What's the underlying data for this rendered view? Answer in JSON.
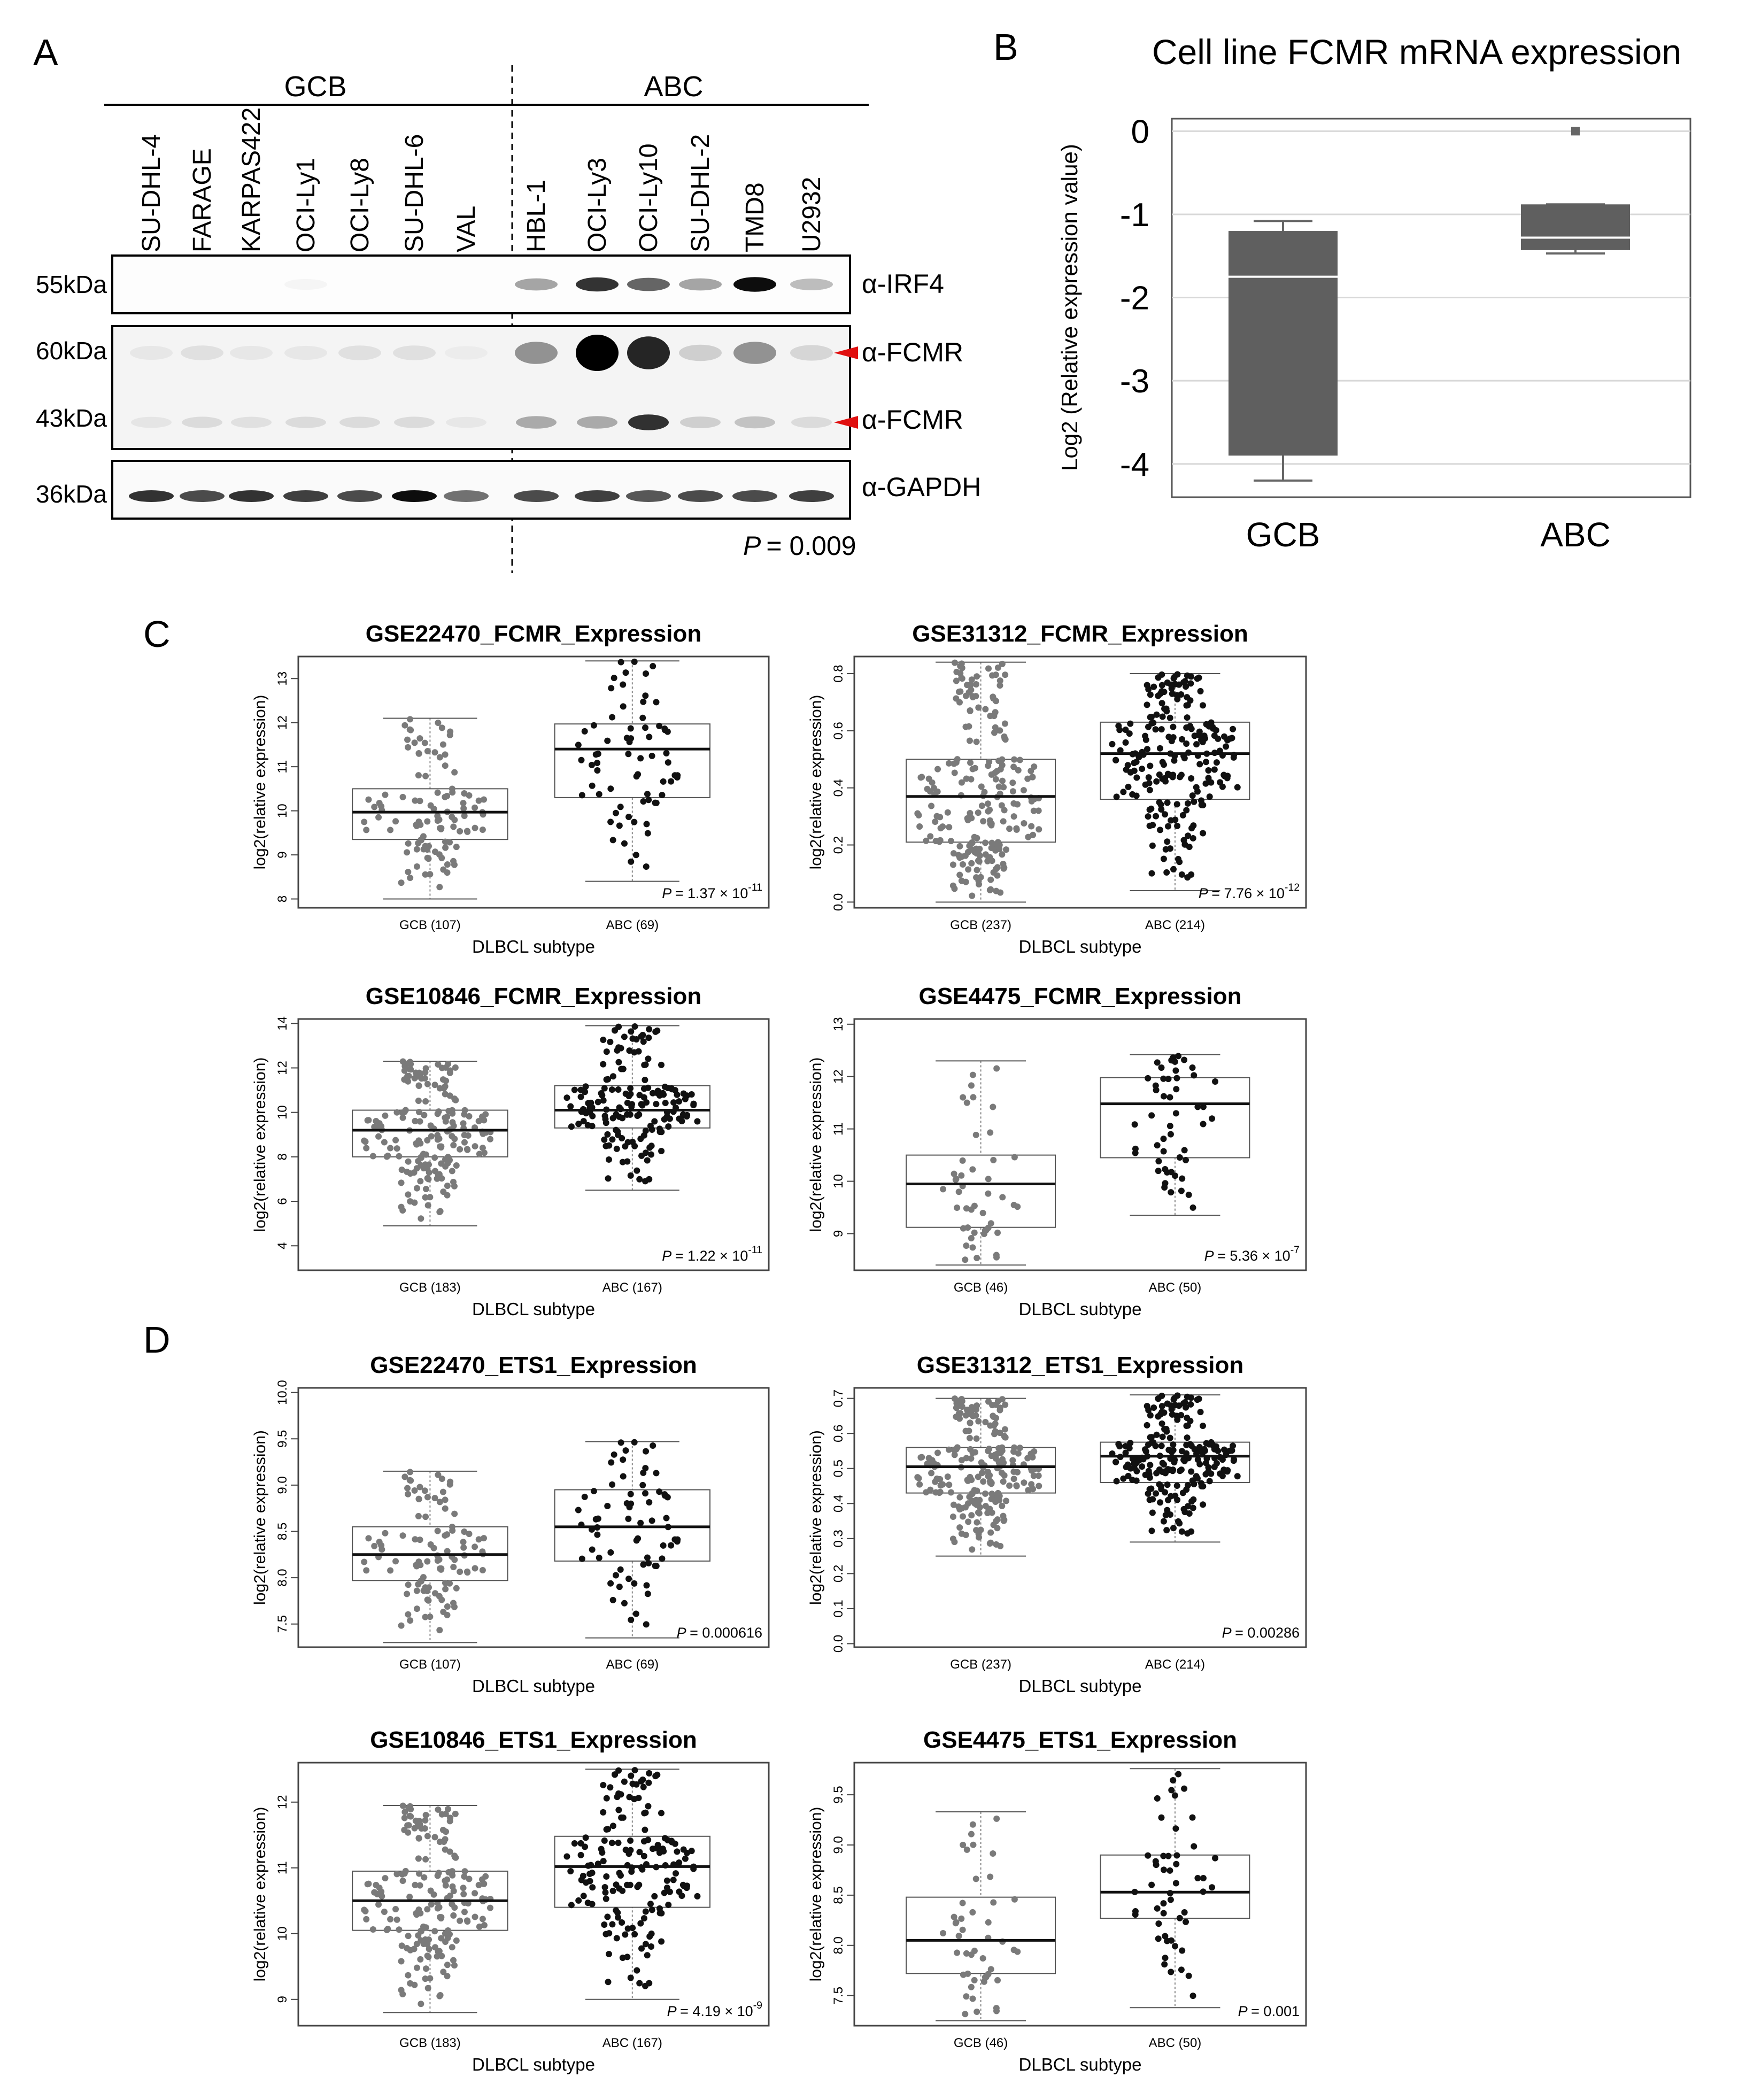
{
  "panel_labels": {
    "A": "A",
    "B": "B",
    "C": "C",
    "D": "D"
  },
  "western_blot": {
    "groups": [
      "GCB",
      "ABC"
    ],
    "lanes": [
      "SU-DHL-4",
      "FARAGE",
      "KARPAS422",
      "OCI-Ly1",
      "OCI-Ly8",
      "SU-DHL-6",
      "VAL",
      "HBL-1",
      "OCI-Ly3",
      "OCI-Ly10",
      "SU-DHL-2",
      "TMD8",
      "U2932"
    ],
    "markers": [
      "55kDa",
      "60kDa",
      "43kDa",
      "36kDa"
    ],
    "antibodies": [
      "α-IRF4",
      "α-FCMR",
      "α-FCMR",
      "α-GAPDH"
    ],
    "p_value": "= 0.009",
    "p_italic": "P"
  },
  "chart_data": [
    {
      "id": "B",
      "type": "box",
      "title": "Cell line FCMR mRNA expression",
      "ylabel": "Log2 (Relative expression value)",
      "ylim": [
        -4.4,
        0.15
      ],
      "yticks": [
        0,
        -1,
        -2,
        -3,
        -4
      ],
      "categories": [
        "GCB",
        "ABC"
      ],
      "boxes": [
        {
          "whisker_low": -4.2,
          "q1": -3.9,
          "median": -1.75,
          "q3": -1.2,
          "whisker_high": -1.08,
          "outliers": []
        },
        {
          "whisker_low": -1.47,
          "q1": -1.43,
          "median": -1.28,
          "q3": -0.88,
          "whisker_high": -0.88,
          "outliers": [
            0
          ]
        }
      ]
    },
    {
      "id": "C1",
      "type": "box",
      "title": "GSE22470_FCMR_Expression",
      "xlabel": "DLBCL subtype",
      "ylabel": "log2(relative expression)",
      "ylim": [
        7.8,
        13.5
      ],
      "yticks": [
        8,
        9,
        10,
        11,
        12,
        13
      ],
      "categories": [
        "GCB  (107)",
        "ABC  (69)"
      ],
      "p_value": "= 1.37 × 10",
      "p_exp": "-11",
      "boxes": [
        {
          "whisker_low": 8.0,
          "q1": 9.35,
          "median": 9.97,
          "q3": 10.5,
          "whisker_high": 12.1,
          "n": 107
        },
        {
          "whisker_low": 8.4,
          "q1": 10.3,
          "median": 11.4,
          "q3": 11.97,
          "whisker_high": 13.4,
          "n": 69
        }
      ]
    },
    {
      "id": "C2",
      "type": "box",
      "title": "GSE31312_FCMR_Expression",
      "xlabel": "DLBCL subtype",
      "ylabel": "log2(relative expression)",
      "ylim": [
        -0.02,
        0.86
      ],
      "yticks": [
        0.0,
        0.2,
        0.4,
        0.6,
        0.8
      ],
      "categories": [
        "GCB  (237)",
        "ABC  (214)"
      ],
      "p_value": "= 7.76 × 10",
      "p_exp": "-12",
      "boxes": [
        {
          "whisker_low": 0.0,
          "q1": 0.21,
          "median": 0.37,
          "q3": 0.5,
          "whisker_high": 0.84,
          "n": 237
        },
        {
          "whisker_low": 0.04,
          "q1": 0.36,
          "median": 0.52,
          "q3": 0.63,
          "whisker_high": 0.8,
          "n": 214
        }
      ]
    },
    {
      "id": "C3",
      "type": "box",
      "title": "GSE10846_FCMR_Expression",
      "xlabel": "DLBCL subtype",
      "ylabel": "log2(relative expression)",
      "ylim": [
        2.9,
        14.2
      ],
      "yticks": [
        4,
        6,
        8,
        10,
        12,
        14
      ],
      "categories": [
        "GCB  (183)",
        "ABC  (167)"
      ],
      "p_value": "= 1.22 × 10",
      "p_exp": "-11",
      "boxes": [
        {
          "whisker_low": 4.9,
          "q1": 8.0,
          "median": 9.2,
          "q3": 10.1,
          "whisker_high": 12.3,
          "n": 183
        },
        {
          "whisker_low": 6.5,
          "q1": 9.3,
          "median": 10.1,
          "q3": 11.2,
          "whisker_high": 13.9,
          "n": 167
        }
      ]
    },
    {
      "id": "C4",
      "type": "box",
      "title": "GSE4475_FCMR_Expression",
      "xlabel": "DLBCL subtype",
      "ylabel": "log2(relative expression)",
      "ylim": [
        8.3,
        13.1
      ],
      "yticks": [
        9,
        10,
        11,
        12,
        13
      ],
      "categories": [
        "GCB  (46)",
        "ABC  (50)"
      ],
      "p_value": "= 5.36 × 10",
      "p_exp": "-7",
      "boxes": [
        {
          "whisker_low": 8.4,
          "q1": 9.12,
          "median": 9.95,
          "q3": 10.5,
          "whisker_high": 12.3,
          "n": 46
        },
        {
          "whisker_low": 9.35,
          "q1": 10.45,
          "median": 11.48,
          "q3": 11.98,
          "whisker_high": 12.42,
          "n": 50
        }
      ]
    },
    {
      "id": "D1",
      "type": "box",
      "title": "GSE22470_ETS1_Expression",
      "xlabel": "DLBCL subtype",
      "ylabel": "log2(relative expression)",
      "ylim": [
        7.25,
        10.05
      ],
      "yticks": [
        7.5,
        8.0,
        8.5,
        9.0,
        9.5,
        10.0
      ],
      "categories": [
        "GCB  (107)",
        "ABC  (69)"
      ],
      "p_value": "= 0.000616",
      "p_exp": "",
      "boxes": [
        {
          "whisker_low": 7.3,
          "q1": 7.97,
          "median": 8.25,
          "q3": 8.55,
          "whisker_high": 9.15,
          "n": 107
        },
        {
          "whisker_low": 7.35,
          "q1": 8.18,
          "median": 8.55,
          "q3": 8.95,
          "whisker_high": 9.47,
          "n": 69
        }
      ]
    },
    {
      "id": "D2",
      "type": "box",
      "title": "GSE31312_ETS1_Expression",
      "xlabel": "DLBCL subtype",
      "ylabel": "log2(relative expression)",
      "ylim": [
        -0.01,
        0.73
      ],
      "yticks": [
        0.0,
        0.1,
        0.2,
        0.3,
        0.4,
        0.5,
        0.6,
        0.7
      ],
      "categories": [
        "GCB  (237)",
        "ABC  (214)"
      ],
      "p_value": "= 0.00286",
      "p_exp": "",
      "boxes": [
        {
          "whisker_low": 0.25,
          "q1": 0.43,
          "median": 0.505,
          "q3": 0.56,
          "whisker_high": 0.7,
          "n": 237
        },
        {
          "whisker_low": 0.29,
          "q1": 0.46,
          "median": 0.535,
          "q3": 0.575,
          "whisker_high": 0.71,
          "n": 214
        }
      ]
    },
    {
      "id": "D3",
      "type": "box",
      "title": "GSE10846_ETS1_Expression",
      "xlabel": "DLBCL subtype",
      "ylabel": "log2(relative expression)",
      "ylim": [
        8.6,
        12.6
      ],
      "yticks": [
        9,
        10,
        11,
        12
      ],
      "categories": [
        "GCB  (183)",
        "ABC  (167)"
      ],
      "p_value": "= 4.19 × 10",
      "p_exp": "-9",
      "boxes": [
        {
          "whisker_low": 8.8,
          "q1": 10.05,
          "median": 10.5,
          "q3": 10.95,
          "whisker_high": 11.95,
          "n": 183
        },
        {
          "whisker_low": 9.0,
          "q1": 10.4,
          "median": 11.02,
          "q3": 11.48,
          "whisker_high": 12.5,
          "n": 167
        }
      ]
    },
    {
      "id": "D4",
      "type": "box",
      "title": "GSE4475_ETS1_Expression",
      "xlabel": "DLBCL subtype",
      "ylabel": "log2(relative expression)",
      "ylim": [
        7.2,
        9.82
      ],
      "yticks": [
        7.5,
        8.0,
        8.5,
        9.0,
        9.5
      ],
      "categories": [
        "GCB  (46)",
        "ABC  (50)"
      ],
      "p_value": "= 0.001",
      "p_exp": "",
      "boxes": [
        {
          "whisker_low": 7.25,
          "q1": 7.72,
          "median": 8.05,
          "q3": 8.48,
          "whisker_high": 9.33,
          "n": 46
        },
        {
          "whisker_low": 7.38,
          "q1": 8.27,
          "median": 8.53,
          "q3": 8.9,
          "whisker_high": 9.76,
          "n": 50
        }
      ]
    }
  ]
}
